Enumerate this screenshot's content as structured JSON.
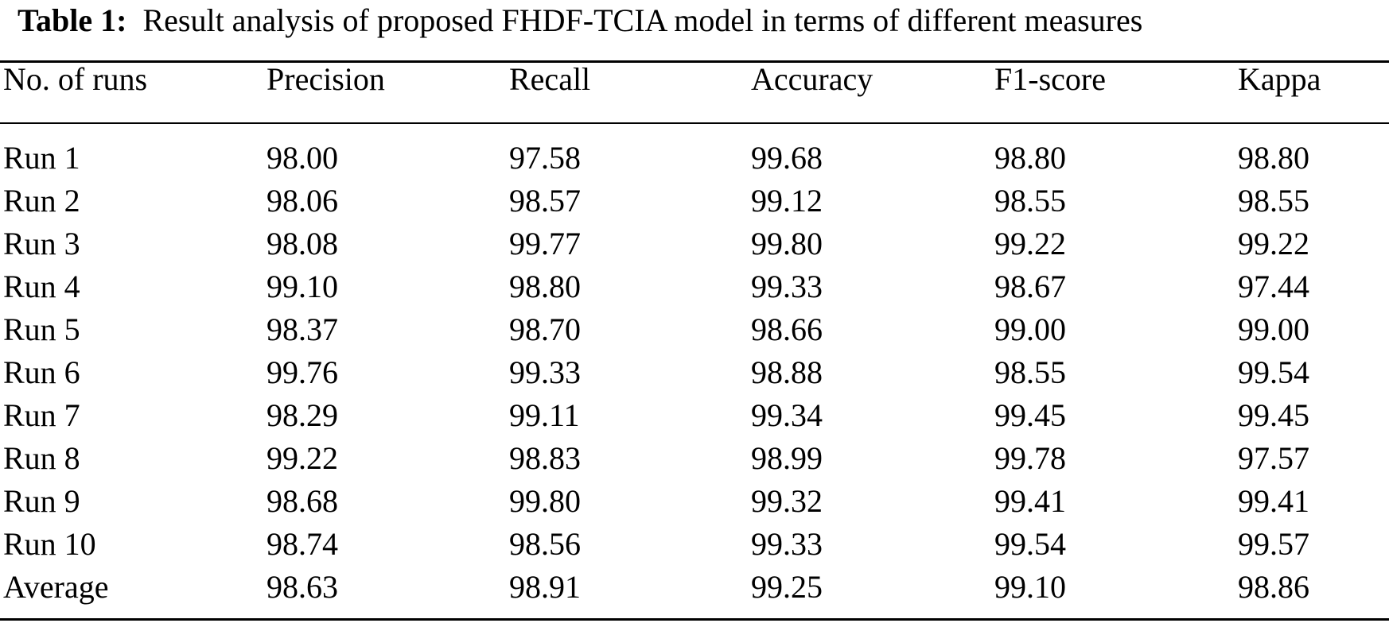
{
  "table": {
    "caption_label": "Table 1:",
    "caption_text": "Result analysis of proposed FHDF-TCIA model in terms of different measures",
    "headers": [
      "No. of runs",
      "Precision",
      "Recall",
      "Accuracy",
      "F1-score",
      "Kappa"
    ],
    "rows": [
      [
        "Run 1",
        "98.00",
        "97.58",
        "99.68",
        "98.80",
        "98.80"
      ],
      [
        "Run 2",
        "98.06",
        "98.57",
        "99.12",
        "98.55",
        "98.55"
      ],
      [
        "Run 3",
        "98.08",
        "99.77",
        "99.80",
        "99.22",
        "99.22"
      ],
      [
        "Run 4",
        "99.10",
        "98.80",
        "99.33",
        "98.67",
        "97.44"
      ],
      [
        "Run 5",
        "98.37",
        "98.70",
        "98.66",
        "99.00",
        "99.00"
      ],
      [
        "Run 6",
        "99.76",
        "99.33",
        "98.88",
        "98.55",
        "99.54"
      ],
      [
        "Run 7",
        "98.29",
        "99.11",
        "99.34",
        "99.45",
        "99.45"
      ],
      [
        "Run 8",
        "99.22",
        "98.83",
        "98.99",
        "99.78",
        "97.57"
      ],
      [
        "Run 9",
        "98.68",
        "99.80",
        "99.32",
        "99.41",
        "99.41"
      ],
      [
        "Run 10",
        "98.74",
        "98.56",
        "99.33",
        "99.54",
        "99.57"
      ],
      [
        "Average",
        "98.63",
        "98.91",
        "99.25",
        "99.10",
        "98.86"
      ]
    ]
  }
}
